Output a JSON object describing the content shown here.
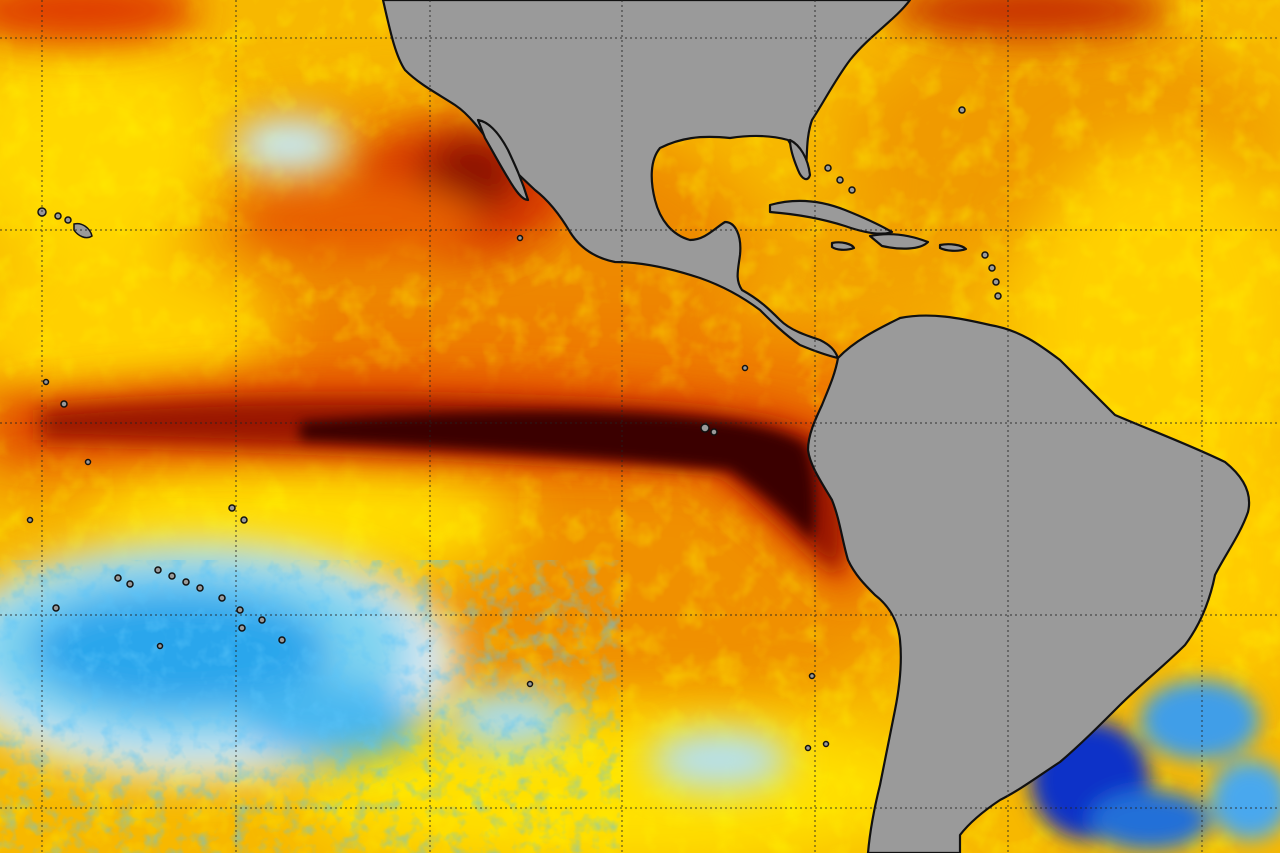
{
  "map": {
    "kind": "sea-surface-temperature-anomaly",
    "region": "eastern-pacific-and-americas",
    "colors": {
      "land": "#9a9a9a",
      "coastline": "#111111",
      "grid": "#222222",
      "very_warm": "#3a0000",
      "warm_dark": "#8a0a00",
      "warm_red": "#d83a00",
      "warm_orange": "#f08a00",
      "warm_amber": "#f7b500",
      "warm_yellow": "#ffe600",
      "neutral": "#e8e8e8",
      "cool_light": "#7fd3f0",
      "cool": "#1ea0e8",
      "cold": "#1030c8"
    },
    "gridlines": "dotted",
    "features": [
      "el-nino-warm-tongue",
      "north-america",
      "central-america",
      "south-america",
      "caribbean-islands",
      "hawaii",
      "french-polynesia",
      "galapagos"
    ]
  }
}
